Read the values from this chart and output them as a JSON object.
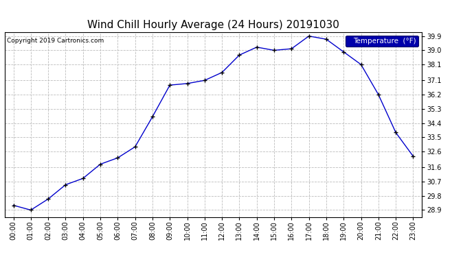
{
  "title": "Wind Chill Hourly Average (24 Hours) 20191030",
  "copyright": "Copyright 2019 Cartronics.com",
  "legend_label": "Temperature  (°F)",
  "hours": [
    "00:00",
    "01:00",
    "02:00",
    "03:00",
    "04:00",
    "05:00",
    "06:00",
    "07:00",
    "08:00",
    "09:00",
    "10:00",
    "11:00",
    "12:00",
    "13:00",
    "14:00",
    "15:00",
    "16:00",
    "17:00",
    "18:00",
    "19:00",
    "20:00",
    "21:00",
    "22:00",
    "23:00"
  ],
  "values": [
    29.2,
    28.9,
    29.6,
    30.5,
    30.9,
    31.8,
    32.2,
    32.9,
    34.8,
    36.8,
    36.9,
    37.1,
    37.6,
    38.7,
    39.2,
    39.0,
    39.1,
    39.9,
    39.7,
    38.9,
    38.1,
    36.2,
    33.8,
    32.3
  ],
  "yticks": [
    28.9,
    29.8,
    30.7,
    31.6,
    32.6,
    33.5,
    34.4,
    35.3,
    36.2,
    37.1,
    38.1,
    39.0,
    39.9
  ],
  "ylim": [
    28.45,
    40.15
  ],
  "line_color": "#0000cc",
  "marker": "+",
  "marker_color": "#000000",
  "background_color": "#ffffff",
  "grid_color": "#bbbbbb",
  "title_fontsize": 11,
  "copyright_fontsize": 6.5,
  "tick_fontsize": 7,
  "legend_bg": "#0000aa",
  "legend_fg": "#ffffff",
  "legend_fontsize": 7.5
}
